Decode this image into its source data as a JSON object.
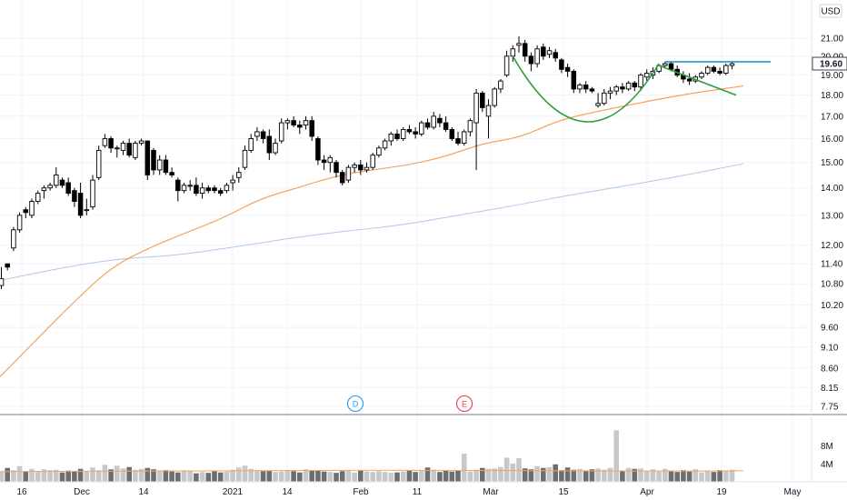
{
  "chart_data": {
    "type": "candlestick",
    "currency": "USD",
    "price_ticks": [
      7.75,
      8.15,
      8.6,
      9.1,
      9.6,
      10.2,
      10.8,
      11.4,
      12.0,
      13.0,
      14.0,
      15.0,
      16.0,
      17.0,
      18.0,
      19.0,
      20.0,
      21.0
    ],
    "price_tick_labels": [
      "7.75",
      "8.15",
      "8.60",
      "9.10",
      "9.60",
      "10.20",
      "10.80",
      "11.40",
      "12.00",
      "13.00",
      "14.00",
      "15.00",
      "16.00",
      "17.00",
      "18.00",
      "19.00",
      "20.00",
      "21.00"
    ],
    "last_price": 19.6,
    "last_price_label": "19.60",
    "volume_ticks": [
      4,
      8
    ],
    "volume_tick_labels": [
      "4M",
      "8M"
    ],
    "x_labels": [
      "16",
      "Dec",
      "14",
      "2021",
      "14",
      "Feb",
      "11",
      "Mar",
      "15",
      "Apr",
      "19",
      "May"
    ],
    "events": [
      {
        "label": "D",
        "color": "#2196f3"
      },
      {
        "label": "E",
        "color": "#f23645"
      }
    ],
    "candles": [
      [
        10.75,
        11.3,
        10.65,
        10.95
      ],
      [
        11.4,
        11.4,
        11.2,
        11.3
      ],
      [
        11.9,
        12.6,
        11.8,
        12.5
      ],
      [
        12.5,
        13.1,
        12.4,
        13.0
      ],
      [
        13.2,
        13.3,
        12.9,
        13.1
      ],
      [
        13.0,
        13.6,
        12.9,
        13.5
      ],
      [
        13.5,
        13.9,
        13.4,
        13.8
      ],
      [
        13.9,
        14.1,
        13.6,
        14.0
      ],
      [
        14.0,
        14.2,
        13.9,
        14.1
      ],
      [
        14.1,
        14.8,
        14.0,
        14.5
      ],
      [
        14.3,
        14.4,
        14.0,
        14.1
      ],
      [
        14.2,
        14.4,
        13.7,
        13.8
      ],
      [
        13.9,
        14.0,
        13.3,
        13.5
      ],
      [
        13.8,
        14.2,
        12.9,
        13.0
      ],
      [
        13.2,
        13.6,
        13.0,
        13.2
      ],
      [
        13.3,
        14.5,
        13.2,
        14.3
      ],
      [
        14.4,
        15.7,
        14.3,
        15.5
      ],
      [
        15.7,
        16.2,
        15.6,
        16.0
      ],
      [
        16.0,
        16.1,
        15.4,
        15.6
      ],
      [
        15.6,
        15.7,
        15.2,
        15.6
      ],
      [
        15.5,
        15.9,
        15.3,
        15.8
      ],
      [
        15.8,
        16.0,
        15.2,
        15.3
      ],
      [
        15.2,
        15.9,
        15.1,
        15.8
      ],
      [
        15.8,
        16.0,
        15.7,
        15.9
      ],
      [
        15.9,
        15.9,
        14.3,
        14.5
      ],
      [
        15.5,
        15.6,
        14.5,
        14.7
      ],
      [
        14.7,
        15.3,
        14.5,
        15.1
      ],
      [
        15.1,
        15.3,
        14.5,
        14.6
      ],
      [
        14.6,
        14.8,
        14.4,
        14.5
      ],
      [
        14.3,
        14.4,
        13.5,
        13.9
      ],
      [
        13.9,
        14.2,
        13.8,
        14.1
      ],
      [
        14.1,
        14.3,
        13.9,
        14.1
      ],
      [
        14.1,
        14.4,
        13.7,
        13.8
      ],
      [
        13.8,
        14.2,
        13.6,
        14.0
      ],
      [
        14.0,
        14.1,
        13.8,
        13.9
      ],
      [
        14.0,
        14.1,
        13.8,
        13.9
      ],
      [
        13.9,
        14.0,
        13.7,
        13.8
      ],
      [
        13.9,
        14.2,
        13.8,
        14.1
      ],
      [
        14.2,
        14.5,
        13.9,
        14.3
      ],
      [
        14.4,
        14.8,
        14.2,
        14.6
      ],
      [
        14.8,
        15.7,
        14.7,
        15.5
      ],
      [
        15.5,
        16.2,
        15.4,
        16.0
      ],
      [
        16.1,
        16.5,
        15.9,
        16.3
      ],
      [
        16.3,
        16.4,
        15.8,
        16.0
      ],
      [
        16.1,
        16.4,
        15.1,
        15.4
      ],
      [
        15.4,
        16.0,
        15.3,
        15.8
      ],
      [
        15.9,
        16.9,
        15.8,
        16.7
      ],
      [
        16.7,
        16.9,
        16.4,
        16.8
      ],
      [
        16.8,
        17.0,
        16.5,
        16.6
      ],
      [
        16.6,
        16.8,
        16.2,
        16.5
      ],
      [
        16.6,
        17.0,
        16.4,
        16.8
      ],
      [
        16.8,
        17.0,
        15.9,
        16.1
      ],
      [
        16.0,
        16.1,
        14.9,
        15.1
      ],
      [
        15.1,
        15.3,
        14.7,
        15.0
      ],
      [
        15.0,
        15.3,
        14.6,
        15.2
      ],
      [
        15.0,
        15.1,
        14.4,
        14.6
      ],
      [
        14.6,
        14.7,
        14.1,
        14.2
      ],
      [
        14.3,
        14.9,
        14.2,
        14.8
      ],
      [
        14.8,
        15.0,
        14.6,
        14.9
      ],
      [
        14.9,
        15.1,
        14.5,
        14.7
      ],
      [
        14.7,
        15.0,
        14.6,
        14.8
      ],
      [
        14.8,
        15.4,
        14.7,
        15.3
      ],
      [
        15.3,
        15.7,
        15.2,
        15.6
      ],
      [
        15.6,
        16.0,
        15.5,
        15.9
      ],
      [
        15.9,
        16.3,
        15.7,
        16.2
      ],
      [
        16.2,
        16.4,
        15.9,
        16.0
      ],
      [
        16.0,
        16.5,
        15.9,
        16.4
      ],
      [
        16.4,
        16.6,
        16.2,
        16.3
      ],
      [
        16.3,
        16.5,
        16.0,
        16.2
      ],
      [
        16.2,
        16.8,
        16.1,
        16.7
      ],
      [
        16.7,
        16.9,
        16.4,
        16.5
      ],
      [
        16.5,
        17.2,
        16.4,
        17.0
      ],
      [
        16.9,
        17.1,
        16.5,
        16.7
      ],
      [
        16.7,
        17.0,
        16.3,
        16.4
      ],
      [
        16.4,
        16.5,
        15.9,
        16.0
      ],
      [
        16.0,
        16.3,
        15.7,
        15.8
      ],
      [
        15.8,
        16.4,
        15.7,
        16.3
      ],
      [
        16.3,
        16.9,
        16.1,
        16.8
      ],
      [
        16.7,
        18.3,
        14.7,
        18.1
      ],
      [
        18.1,
        18.2,
        17.2,
        17.4
      ],
      [
        17.0,
        17.8,
        16.0,
        17.5
      ],
      [
        17.5,
        18.4,
        17.4,
        18.3
      ],
      [
        18.3,
        18.8,
        18.1,
        18.7
      ],
      [
        19.0,
        20.3,
        18.9,
        20.0
      ],
      [
        20.0,
        20.6,
        19.7,
        20.4
      ],
      [
        20.6,
        21.1,
        20.2,
        20.7
      ],
      [
        20.7,
        20.9,
        19.7,
        20.0
      ],
      [
        20.0,
        20.2,
        19.2,
        19.6
      ],
      [
        19.6,
        20.6,
        19.4,
        20.4
      ],
      [
        20.5,
        20.7,
        19.8,
        20.0
      ],
      [
        20.1,
        20.5,
        19.9,
        20.3
      ],
      [
        20.2,
        20.4,
        19.7,
        19.9
      ],
      [
        19.8,
        19.9,
        19.1,
        19.3
      ],
      [
        19.4,
        19.6,
        18.9,
        19.2
      ],
      [
        19.2,
        19.3,
        18.1,
        18.3
      ],
      [
        18.3,
        18.6,
        18.1,
        18.5
      ],
      [
        18.5,
        18.7,
        18.1,
        18.3
      ],
      [
        18.3,
        18.4,
        18.1,
        18.2
      ],
      [
        17.5,
        18.1,
        17.4,
        17.6
      ],
      [
        17.6,
        18.3,
        17.5,
        18.1
      ],
      [
        18.1,
        18.4,
        17.8,
        18.2
      ],
      [
        18.2,
        18.5,
        18.0,
        18.4
      ],
      [
        18.4,
        18.6,
        18.1,
        18.3
      ],
      [
        18.3,
        18.7,
        18.2,
        18.6
      ],
      [
        18.6,
        18.7,
        18.2,
        18.4
      ],
      [
        18.4,
        19.1,
        18.2,
        19.0
      ],
      [
        18.9,
        19.3,
        18.7,
        19.1
      ],
      [
        19.0,
        19.4,
        18.8,
        19.2
      ],
      [
        19.2,
        19.6,
        19.1,
        19.5
      ],
      [
        19.5,
        19.7,
        19.4,
        19.6
      ],
      [
        19.6,
        19.7,
        19.2,
        19.3
      ],
      [
        19.3,
        19.5,
        18.9,
        19.0
      ],
      [
        19.0,
        19.2,
        18.6,
        18.8
      ],
      [
        18.8,
        19.1,
        18.5,
        18.7
      ],
      [
        18.7,
        19.0,
        18.6,
        18.9
      ],
      [
        18.9,
        19.2,
        18.8,
        19.1
      ],
      [
        19.1,
        19.5,
        19.0,
        19.4
      ],
      [
        19.4,
        19.5,
        19.1,
        19.2
      ],
      [
        19.2,
        19.4,
        19.0,
        19.1
      ],
      [
        19.1,
        19.6,
        19.0,
        19.5
      ],
      [
        19.5,
        19.7,
        19.3,
        19.6
      ]
    ],
    "volume": [
      2.2,
      3.1,
      2.6,
      3.5,
      2.3,
      2.9,
      2.4,
      2.8,
      2.6,
      2.7,
      2.1,
      2.5,
      2.3,
      2.9,
      2.4,
      3.2,
      2.6,
      3.8,
      2.8,
      3.6,
      3.0,
      3.3,
      2.7,
      2.9,
      3.1,
      2.8,
      2.5,
      2.6,
      2.3,
      2.1,
      2.6,
      2.4,
      1.9,
      2.2,
      2.0,
      2.4,
      2.1,
      2.3,
      2.7,
      3.2,
      3.6,
      2.9,
      2.6,
      2.4,
      2.5,
      2.2,
      2.3,
      2.6,
      2.4,
      2.1,
      2.8,
      2.5,
      2.6,
      2.3,
      2.2,
      2.0,
      2.4,
      2.6,
      2.1,
      2.5,
      2.3,
      2.2,
      2.4,
      2.2,
      2.0,
      2.1,
      2.3,
      2.5,
      2.2,
      2.4,
      3.2,
      2.7,
      2.2,
      2.5,
      2.3,
      2.6,
      6.3,
      2.3,
      2.7,
      3.1,
      2.9,
      3.0,
      3.3,
      5.4,
      4.1,
      5.3,
      3.0,
      2.8,
      3.5,
      3.1,
      3.3,
      3.9,
      2.6,
      3.2,
      2.7,
      2.9,
      2.5,
      2.8,
      3.0,
      2.7,
      3.1,
      11.5,
      2.5,
      3.1,
      2.9,
      3.0,
      2.4,
      2.8,
      2.3,
      2.9,
      2.5,
      2.2,
      2.6,
      2.3,
      2.8,
      2.1,
      2.4,
      2.2,
      2.6,
      2.5,
      2.7
    ],
    "ma50": [
      8.4,
      9.3,
      10.3,
      11.3,
      11.9,
      12.4,
      12.9,
      13.6,
      14.0,
      14.45,
      14.7,
      14.9,
      15.25,
      15.8,
      16.05,
      16.8,
      17.2,
      17.55,
      17.9,
      18.2,
      18.45
    ],
    "ma200": [
      10.9,
      11.25,
      11.55,
      11.65,
      11.9,
      12.2,
      12.45,
      12.65,
      13.0,
      13.35,
      13.75,
      14.1,
      14.5,
      14.95
    ],
    "volume_ma": 2.5,
    "annotations": {
      "cup": "green",
      "resistance_line": 19.7,
      "handle_trend": "green"
    }
  }
}
